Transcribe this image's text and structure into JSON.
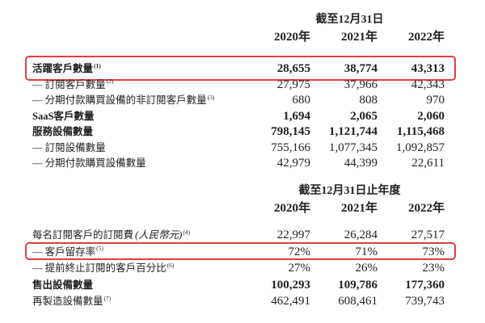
{
  "accent": {
    "highlight_border": "#e13e3e"
  },
  "table1": {
    "period_header": "截至12月31日",
    "years": [
      "2020年",
      "2021年",
      "2022年"
    ],
    "rows": [
      {
        "label": "活躍客戶數量",
        "sup": "(1)",
        "bold": true,
        "highlight": true,
        "values": [
          "28,655",
          "38,774",
          "43,313"
        ]
      },
      {
        "label": "— 訂閱客戶數量",
        "sup": "(2)",
        "bold": false,
        "values": [
          "27,975",
          "37,966",
          "42,343"
        ]
      },
      {
        "label": "— 分期付款購買設備的非訂閱客戶數量",
        "sup": "(3)",
        "bold": false,
        "values": [
          "680",
          "808",
          "970"
        ]
      },
      {
        "label": "SaaS客戶數量",
        "sup": "",
        "bold": true,
        "values": [
          "1,694",
          "2,065",
          "2,060"
        ]
      },
      {
        "label": "服務設備數量",
        "sup": "",
        "bold": true,
        "values": [
          "798,145",
          "1,121,744",
          "1,115,468"
        ]
      },
      {
        "label": "— 訂閱設備數量",
        "sup": "",
        "bold": false,
        "values": [
          "755,166",
          "1,077,345",
          "1,092,857"
        ]
      },
      {
        "label": "— 分期付款購買設備數量",
        "sup": "",
        "bold": false,
        "values": [
          "42,979",
          "44,399",
          "22,611"
        ]
      }
    ]
  },
  "table2": {
    "period_header": "截至12月31日止年度",
    "years": [
      "2020年",
      "2021年",
      "2022年"
    ],
    "rows": [
      {
        "label": "每名訂閱客戶的訂閱費",
        "note": "(人民幣元)",
        "sup": "(4)",
        "bold": false,
        "values": [
          "22,997",
          "26,284",
          "27,517"
        ]
      },
      {
        "label": "— 客戶留存率",
        "sup": "(5)",
        "bold": false,
        "highlight": true,
        "values": [
          "72%",
          "71%",
          "73%"
        ]
      },
      {
        "label": "— 提前終止訂閱的客戶百分比",
        "sup": "(6)",
        "bold": false,
        "values": [
          "27%",
          "26%",
          "23%"
        ]
      },
      {
        "label": "售出設備數量",
        "sup": "",
        "bold": true,
        "values": [
          "100,293",
          "109,786",
          "177,360"
        ]
      },
      {
        "label": "再製造設備數量",
        "sup": "(7)",
        "bold": false,
        "values": [
          "462,491",
          "608,461",
          "739,743"
        ]
      }
    ]
  }
}
